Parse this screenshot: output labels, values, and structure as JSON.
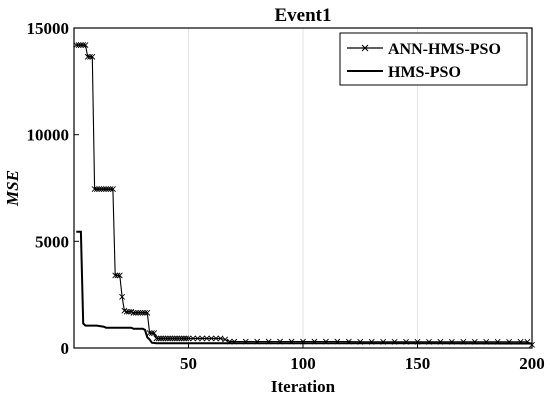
{
  "chart_data": {
    "type": "line",
    "title": "Event1",
    "xlabel": "Iteration",
    "ylabel": "MSE",
    "xlim": [
      0,
      200
    ],
    "ylim": [
      0,
      15000
    ],
    "x_ticks": [
      50,
      100,
      150,
      200
    ],
    "y_ticks": [
      0,
      5000,
      10000,
      15000
    ],
    "x_tick_labels": [
      "50",
      "100",
      "150",
      "200"
    ],
    "y_tick_labels": [
      "0",
      "5000",
      "10000",
      "15000"
    ],
    "grid": "vertical",
    "legend_position": "top-right",
    "series": [
      {
        "name": "ANN-HMS-PSO",
        "color": "#000000",
        "marker": "x",
        "points": [
          [
            1,
            14200
          ],
          [
            2,
            14200
          ],
          [
            3,
            14200
          ],
          [
            4,
            14200
          ],
          [
            5,
            14200
          ],
          [
            6,
            13650
          ],
          [
            7,
            13650
          ],
          [
            8,
            13650
          ],
          [
            9,
            7450
          ],
          [
            10,
            7450
          ],
          [
            11,
            7450
          ],
          [
            12,
            7450
          ],
          [
            13,
            7450
          ],
          [
            14,
            7450
          ],
          [
            15,
            7450
          ],
          [
            16,
            7450
          ],
          [
            17,
            7450
          ],
          [
            18,
            3400
          ],
          [
            19,
            3400
          ],
          [
            20,
            3400
          ],
          [
            21,
            2400
          ],
          [
            22,
            1750
          ],
          [
            23,
            1700
          ],
          [
            24,
            1700
          ],
          [
            25,
            1700
          ],
          [
            26,
            1650
          ],
          [
            27,
            1650
          ],
          [
            28,
            1650
          ],
          [
            29,
            1650
          ],
          [
            30,
            1650
          ],
          [
            31,
            1650
          ],
          [
            32,
            1650
          ],
          [
            33,
            700
          ],
          [
            34,
            700
          ],
          [
            35,
            700
          ],
          [
            36,
            450
          ],
          [
            37,
            450
          ],
          [
            38,
            450
          ],
          [
            39,
            450
          ],
          [
            40,
            450
          ],
          [
            41,
            450
          ],
          [
            42,
            450
          ],
          [
            43,
            450
          ],
          [
            44,
            450
          ],
          [
            45,
            450
          ],
          [
            46,
            450
          ],
          [
            47,
            450
          ],
          [
            48,
            450
          ],
          [
            49,
            450
          ],
          [
            50,
            450
          ],
          [
            52,
            450
          ],
          [
            54,
            450
          ],
          [
            56,
            450
          ],
          [
            58,
            450
          ],
          [
            60,
            450
          ],
          [
            62,
            450
          ],
          [
            64,
            450
          ],
          [
            66,
            400
          ],
          [
            68,
            300
          ],
          [
            70,
            300
          ],
          [
            75,
            300
          ],
          [
            80,
            300
          ],
          [
            85,
            300
          ],
          [
            90,
            300
          ],
          [
            95,
            300
          ],
          [
            100,
            300
          ],
          [
            105,
            300
          ],
          [
            110,
            300
          ],
          [
            115,
            300
          ],
          [
            120,
            300
          ],
          [
            125,
            290
          ],
          [
            130,
            290
          ],
          [
            135,
            290
          ],
          [
            140,
            290
          ],
          [
            145,
            290
          ],
          [
            150,
            290
          ],
          [
            155,
            290
          ],
          [
            160,
            290
          ],
          [
            165,
            290
          ],
          [
            170,
            290
          ],
          [
            175,
            290
          ],
          [
            180,
            290
          ],
          [
            185,
            290
          ],
          [
            190,
            290
          ],
          [
            195,
            290
          ],
          [
            198,
            290
          ],
          [
            200,
            150
          ]
        ]
      },
      {
        "name": "HMS-PSO",
        "color": "#000000",
        "marker": "none",
        "points": [
          [
            1,
            5450
          ],
          [
            2,
            5450
          ],
          [
            3,
            5450
          ],
          [
            4,
            1150
          ],
          [
            5,
            1050
          ],
          [
            10,
            1050
          ],
          [
            13,
            1000
          ],
          [
            14,
            950
          ],
          [
            25,
            950
          ],
          [
            26,
            900
          ],
          [
            30,
            900
          ],
          [
            31,
            850
          ],
          [
            32,
            500
          ],
          [
            33,
            400
          ],
          [
            34,
            250
          ],
          [
            36,
            220
          ],
          [
            50,
            220
          ],
          [
            100,
            220
          ],
          [
            150,
            220
          ],
          [
            200,
            210
          ]
        ]
      }
    ]
  }
}
